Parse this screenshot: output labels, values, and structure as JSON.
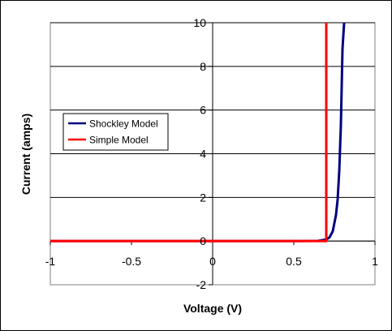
{
  "chart_data": {
    "type": "line",
    "xlabel": "Voltage (V)",
    "ylabel": "Current (amps)",
    "xlim": [
      -1,
      1
    ],
    "ylim": [
      -2,
      10
    ],
    "x_ticks": [
      -1,
      -0.5,
      0,
      0.5,
      1
    ],
    "y_ticks": [
      -2,
      0,
      2,
      4,
      6,
      8,
      10
    ],
    "x_tick_labels": [
      "-1",
      "-0.5",
      "0",
      "0.5",
      "1"
    ],
    "y_tick_labels": [
      "-2",
      "0",
      "2",
      "4",
      "6",
      "8",
      "10"
    ],
    "grid": "horizontal gridlines at each y tick",
    "legend_placement": "left, middle",
    "series": [
      {
        "name": "Shockley Model",
        "color": "#000080",
        "x": [
          -1,
          0,
          0.5,
          0.65,
          0.7,
          0.72,
          0.74,
          0.76,
          0.77,
          0.78,
          0.79,
          0.8,
          0.81
        ],
        "y": [
          0,
          0,
          0,
          0.01,
          0.07,
          0.17,
          0.45,
          1.2,
          1.9,
          3.2,
          5.3,
          8.8,
          10
        ]
      },
      {
        "name": "Simple Model",
        "color": "#ff0000",
        "x": [
          -1,
          0.7,
          0.7
        ],
        "y": [
          0,
          0,
          10
        ]
      }
    ]
  }
}
